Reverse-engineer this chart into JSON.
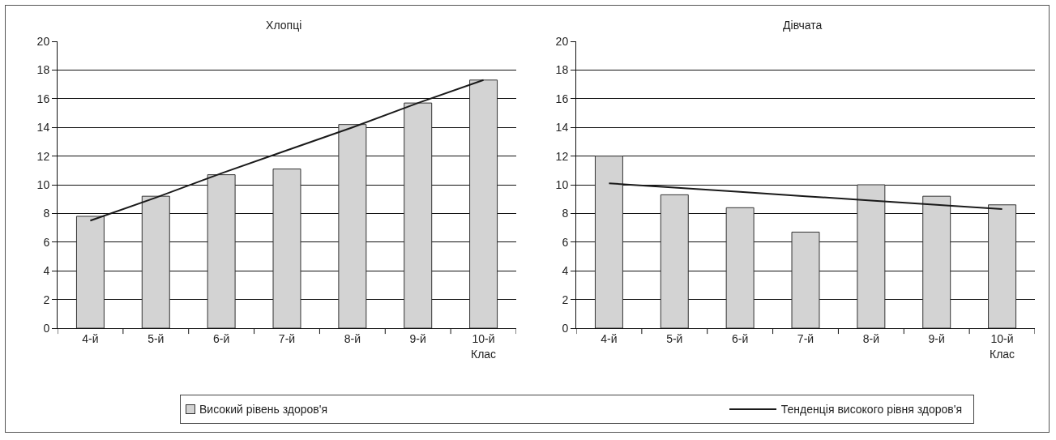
{
  "chart_data": [
    {
      "type": "bar",
      "title": "Хлопці",
      "xlabel": "Клас",
      "categories": [
        "4-й",
        "5-й",
        "6-й",
        "7-й",
        "8-й",
        "9-й",
        "10-й"
      ],
      "series": [
        {
          "name": "Високий рівень здоров'я",
          "color": "#d3d3d3",
          "values": [
            7.8,
            9.2,
            10.7,
            11.1,
            14.2,
            15.7,
            17.3
          ]
        },
        {
          "name": "Тенденція високого рівня здоров'я",
          "type": "line",
          "color": "#1a1a1a",
          "values": [
            7.5,
            9.1,
            10.8,
            12.4,
            14.0,
            15.7,
            17.3
          ]
        }
      ],
      "ylim": [
        0,
        20
      ],
      "yticks": [
        0,
        2,
        4,
        6,
        8,
        10,
        12,
        14,
        16,
        18,
        20
      ],
      "grid": "y",
      "legend": "bottom"
    },
    {
      "type": "bar",
      "title": "Дівчата",
      "xlabel": "Клас",
      "categories": [
        "4-й",
        "5-й",
        "6-й",
        "7-й",
        "8-й",
        "9-й",
        "10-й"
      ],
      "series": [
        {
          "color": "#d3d3d3",
          "values": [
            12,
            9.3,
            8.4,
            6.7,
            10,
            9.2,
            8.6
          ]
        },
        {
          "type": "line",
          "color": "#1a1a1a",
          "values": [
            10.1,
            9.8,
            9.5,
            9.2,
            8.9,
            8.6,
            8.3
          ]
        }
      ],
      "ylim": [
        0,
        20
      ],
      "yticks": [
        0,
        2,
        4,
        6,
        8,
        10,
        12,
        14,
        16,
        18,
        20
      ],
      "grid": "y"
    }
  ]
}
